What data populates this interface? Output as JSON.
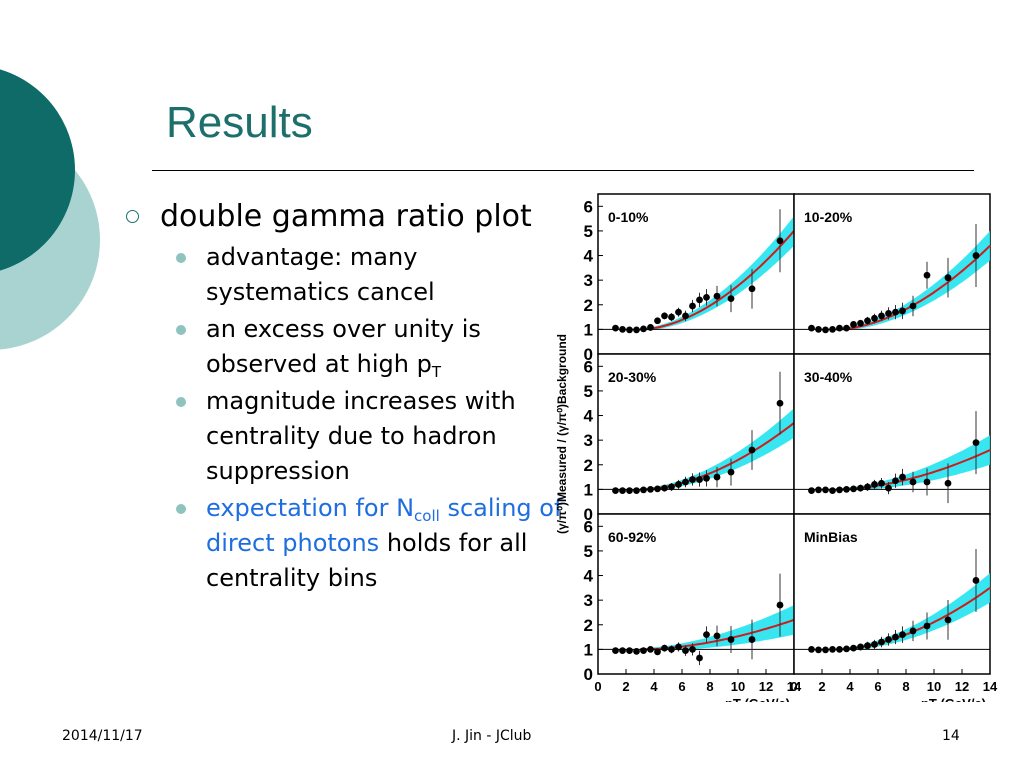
{
  "slide": {
    "title": "Results",
    "bullets": {
      "main": "double gamma ratio plot",
      "sub1": "advantage: many systematics cancel",
      "sub2_text": "an excess over unity is observed at high p",
      "sub2_sub": "T",
      "sub3": "magnitude increases with centrality due to hadron suppression",
      "sub4_blue_a": "expectation for N",
      "sub4_blue_sub": "coll",
      "sub4_blue_b": "scaling of direct photons",
      "sub4_rest": "holds for all centrality bins"
    },
    "footer": {
      "date": "2014/11/17",
      "author": "J. Jin - JClub",
      "page": "14"
    },
    "colors": {
      "title": "#1d6f6b",
      "deco_dark": "#0e6b67",
      "deco_light": "#a9d3d0",
      "link_blue": "#1f6ee0",
      "band": "#22e3f0",
      "curve": "#d11a1a"
    }
  },
  "chart_data": {
    "type": "scatter",
    "ylabel": "(γ/π⁰)Measured / (γ/π⁰)Background",
    "xlabel": "pT (GeV/c)",
    "xlim": [
      0,
      14
    ],
    "ylim": [
      0,
      6.5
    ],
    "x_ticks": [
      "0",
      "2",
      "4",
      "6",
      "8",
      "10",
      "12",
      "14"
    ],
    "y_ticks": [
      "0",
      "1",
      "2",
      "3",
      "4",
      "5",
      "6"
    ],
    "panels": [
      {
        "label": "0-10%",
        "x": [
          1.25,
          1.75,
          2.25,
          2.75,
          3.25,
          3.75,
          4.25,
          4.75,
          5.25,
          5.75,
          6.25,
          6.75,
          7.25,
          7.75,
          8.5,
          9.5,
          11,
          13
        ],
        "y": [
          1.05,
          1.0,
          0.98,
          0.98,
          1.02,
          1.08,
          1.35,
          1.55,
          1.5,
          1.7,
          1.55,
          1.95,
          2.2,
          2.3,
          2.35,
          2.25,
          2.65,
          4.6
        ],
        "band": 5.0
      },
      {
        "label": "10-20%",
        "x": [
          1.25,
          1.75,
          2.25,
          2.75,
          3.25,
          3.75,
          4.25,
          4.75,
          5.25,
          5.75,
          6.25,
          6.75,
          7.25,
          7.75,
          8.5,
          9.5,
          11,
          13
        ],
        "y": [
          1.05,
          1.0,
          0.98,
          1.0,
          1.05,
          1.05,
          1.2,
          1.25,
          1.35,
          1.45,
          1.55,
          1.65,
          1.7,
          1.75,
          1.95,
          3.2,
          3.1,
          4.0
        ],
        "band": 4.4
      },
      {
        "label": "20-30%",
        "x": [
          1.25,
          1.75,
          2.25,
          2.75,
          3.25,
          3.75,
          4.25,
          4.75,
          5.25,
          5.75,
          6.25,
          6.75,
          7.25,
          7.75,
          8.5,
          9.5,
          11,
          13
        ],
        "y": [
          0.95,
          0.95,
          0.95,
          0.95,
          0.98,
          1.0,
          1.02,
          1.05,
          1.1,
          1.2,
          1.3,
          1.4,
          1.4,
          1.45,
          1.5,
          1.7,
          2.6,
          4.5
        ],
        "band": 3.7
      },
      {
        "label": "30-40%",
        "x": [
          1.25,
          1.75,
          2.25,
          2.75,
          3.25,
          3.75,
          4.25,
          4.75,
          5.25,
          5.75,
          6.25,
          6.75,
          7.25,
          7.75,
          8.5,
          9.5,
          11,
          13
        ],
        "y": [
          0.95,
          0.98,
          0.98,
          0.95,
          0.98,
          1.0,
          1.02,
          1.05,
          1.1,
          1.2,
          1.25,
          1.05,
          1.35,
          1.5,
          1.3,
          1.3,
          1.25,
          2.9
        ],
        "band": 2.6
      },
      {
        "label": "60-92%",
        "x": [
          1.25,
          1.75,
          2.25,
          2.75,
          3.25,
          3.75,
          4.25,
          4.75,
          5.25,
          5.75,
          6.25,
          6.75,
          7.25,
          7.75,
          8.5,
          9.5,
          11,
          13
        ],
        "y": [
          0.95,
          0.95,
          0.95,
          0.92,
          0.95,
          1.0,
          0.9,
          1.05,
          1.0,
          1.1,
          0.95,
          1.0,
          0.65,
          1.6,
          1.55,
          1.4,
          1.4,
          2.8
        ],
        "band": 2.2
      },
      {
        "label": "MinBias",
        "x": [
          1.25,
          1.75,
          2.25,
          2.75,
          3.25,
          3.75,
          4.25,
          4.75,
          5.25,
          5.75,
          6.25,
          6.75,
          7.25,
          7.75,
          8.5,
          9.5,
          11,
          13
        ],
        "y": [
          1.0,
          0.98,
          0.98,
          1.0,
          1.0,
          1.02,
          1.05,
          1.1,
          1.15,
          1.2,
          1.3,
          1.4,
          1.5,
          1.6,
          1.75,
          1.95,
          2.2,
          3.8
        ],
        "band": 3.5
      }
    ]
  }
}
